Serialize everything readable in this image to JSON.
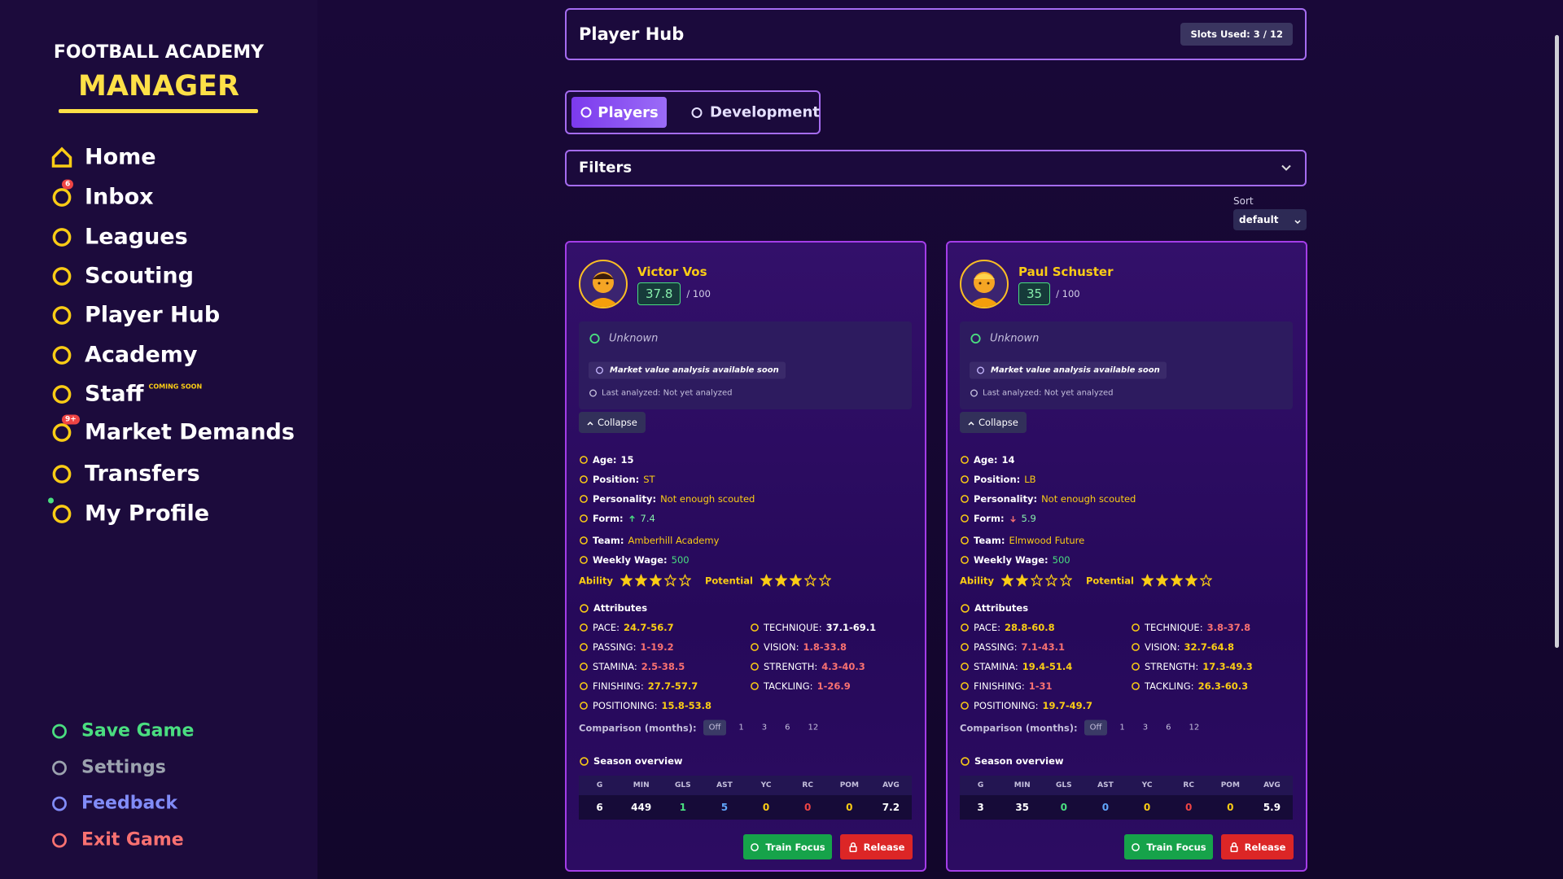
{
  "sidebar": {
    "title_top": "FOOTBALL ACADEMY",
    "title_main": "MANAGER",
    "nav": [
      {
        "label": "Home"
      },
      {
        "label": "Inbox",
        "badge": 6
      },
      {
        "label": "Leagues"
      },
      {
        "label": "Scouting"
      },
      {
        "label": "Player Hub"
      },
      {
        "label": "Academy"
      },
      {
        "label": "Staff",
        "tag": "COMING SOON"
      },
      {
        "label": "Market Demands",
        "badge": "9+"
      },
      {
        "label": "Transfers"
      },
      {
        "label": "My Profile"
      }
    ],
    "actions": [
      {
        "label": "Save Game",
        "color": "#4ade80"
      },
      {
        "label": "Settings",
        "color": "#9ca3af"
      },
      {
        "label": "Feedback",
        "color": "#818cf8"
      },
      {
        "label": "Exit Game",
        "color": "#f87171"
      }
    ]
  },
  "header": {
    "title": "Player Hub",
    "slots": "Slots Used: 3 / 12"
  },
  "tabs": [
    "Players",
    "Development"
  ],
  "filters": "Filters",
  "sort": {
    "label": "Sort",
    "value": "default"
  },
  "labels": {
    "max_rating": "/ 100",
    "market_note": "Market value analysis available soon",
    "last_analyzed": "Last analyzed: Not yet analyzed",
    "collapse": "Collapse",
    "age": "Age:",
    "position": "Position:",
    "personality": "Personality:",
    "form": "Form:",
    "team": "Team:",
    "wage": "Weekly Wage:",
    "ability": "Ability",
    "potential": "Potential",
    "attributes": "Attributes",
    "attribute_names": [
      "PACE:",
      "PASSING:",
      "STAMINA:",
      "FINISHING:",
      "POSITIONING:",
      "TECHNIQUE:",
      "VISION:",
      "STRENGTH:",
      "TACKLING:"
    ],
    "comparison": "Comparison (months):",
    "comparison_options": [
      "Off",
      "1",
      "3",
      "6",
      "12"
    ],
    "season": "Season overview",
    "season_columns": [
      {
        "label": "G",
        "color": "#ffffff"
      },
      {
        "label": "MIN",
        "color": "#ffffff"
      },
      {
        "label": "GLS",
        "color": "#4ade80"
      },
      {
        "label": "AST",
        "color": "#60a5fa"
      },
      {
        "label": "YC",
        "color": "#facc15"
      },
      {
        "label": "RC",
        "color": "#ef4444"
      },
      {
        "label": "POM",
        "color": "#facc15"
      },
      {
        "label": "AVG",
        "color": "#ffffff"
      }
    ],
    "train": "Train Focus",
    "release": "Release"
  },
  "players": [
    {
      "name": "Victor Vos",
      "rating": 37.8,
      "value_status": "Unknown",
      "age": 15,
      "position": "ST",
      "personality": "Not enough scouted",
      "form": 7.4,
      "form_trend": "up",
      "team": "Amberhill Academy",
      "wage": 500,
      "ability_stars": 3,
      "potential_stars": 3,
      "attributes": [
        {
          "range": "24.7-56.7",
          "color": "#facc15"
        },
        {
          "range": "1-19.2",
          "color": "#f87171"
        },
        {
          "range": "2.5-38.5",
          "color": "#f87171"
        },
        {
          "range": "27.7-57.7",
          "color": "#facc15"
        },
        {
          "range": "15.8-53.8",
          "color": "#facc15"
        },
        {
          "range": "37.1-69.1",
          "color": "#ffffff"
        },
        {
          "range": "1.8-33.8",
          "color": "#f87171"
        },
        {
          "range": "4.3-40.3",
          "color": "#f87171"
        },
        {
          "range": "1-26.9",
          "color": "#f87171"
        }
      ],
      "season": [
        6,
        449,
        1,
        5,
        0,
        0,
        0,
        7.2
      ]
    },
    {
      "name": "Paul Schuster",
      "rating": 35,
      "value_status": "Unknown",
      "age": 14,
      "position": "LB",
      "personality": "Not enough scouted",
      "form": 5.9,
      "form_trend": "down",
      "team": "Elmwood Future",
      "wage": 500,
      "ability_stars": 2,
      "potential_stars": 4,
      "attributes": [
        {
          "range": "28.8-60.8",
          "color": "#facc15"
        },
        {
          "range": "7.1-43.1",
          "color": "#f87171"
        },
        {
          "range": "19.4-51.4",
          "color": "#facc15"
        },
        {
          "range": "1-31",
          "color": "#f87171"
        },
        {
          "range": "19.7-49.7",
          "color": "#facc15"
        },
        {
          "range": "3.8-37.8",
          "color": "#f87171"
        },
        {
          "range": "32.7-64.8",
          "color": "#facc15"
        },
        {
          "range": "17.3-49.3",
          "color": "#facc15"
        },
        {
          "range": "26.3-60.3",
          "color": "#facc15"
        }
      ],
      "season": [
        3,
        35,
        0,
        0,
        0,
        0,
        0,
        5.9
      ]
    }
  ]
}
